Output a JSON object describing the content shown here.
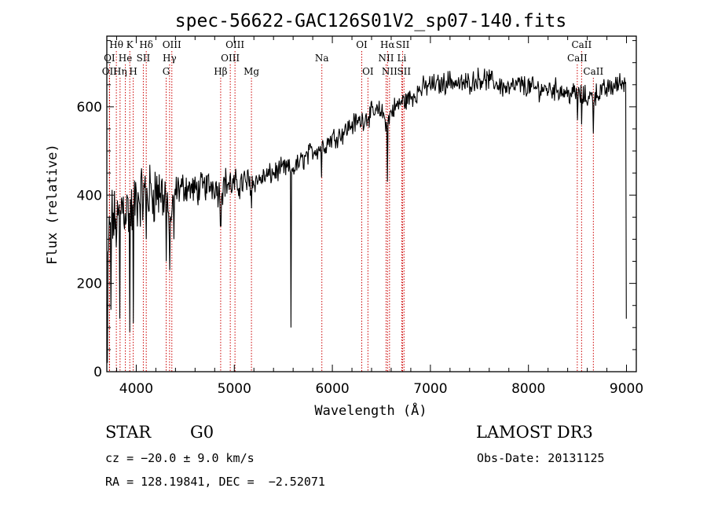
{
  "chart_data": {
    "type": "line",
    "title": "spec-56622-GAC126S01V2_sp07-140.fits",
    "xlabel": "Wavelength (Å)",
    "ylabel": "Flux (relative)",
    "xlim": [
      3700,
      9100
    ],
    "ylim": [
      0,
      760
    ],
    "xticks": [
      4000,
      5000,
      6000,
      7000,
      8000,
      9000
    ],
    "yticks": [
      0,
      200,
      400,
      600
    ],
    "series": [
      {
        "name": "flux",
        "anchors": [
          [
            3700,
            150
          ],
          [
            3720,
            300
          ],
          [
            3750,
            350
          ],
          [
            3800,
            330
          ],
          [
            3850,
            380
          ],
          [
            3900,
            370
          ],
          [
            3950,
            360
          ],
          [
            4000,
            390
          ],
          [
            4100,
            400
          ],
          [
            4200,
            410
          ],
          [
            4300,
            400
          ],
          [
            4340,
            330
          ],
          [
            4400,
            410
          ],
          [
            4500,
            420
          ],
          [
            4600,
            410
          ],
          [
            4700,
            420
          ],
          [
            4800,
            425
          ],
          [
            4861,
            400
          ],
          [
            4900,
            430
          ],
          [
            5000,
            420
          ],
          [
            5100,
            430
          ],
          [
            5200,
            430
          ],
          [
            5300,
            440
          ],
          [
            5400,
            450
          ],
          [
            5500,
            460
          ],
          [
            5600,
            460
          ],
          [
            5700,
            480
          ],
          [
            5800,
            500
          ],
          [
            5900,
            510
          ],
          [
            6000,
            530
          ],
          [
            6100,
            540
          ],
          [
            6200,
            560
          ],
          [
            6300,
            570
          ],
          [
            6400,
            585
          ],
          [
            6500,
            590
          ],
          [
            6563,
            560
          ],
          [
            6600,
            590
          ],
          [
            6700,
            610
          ],
          [
            6800,
            620
          ],
          [
            6900,
            640
          ],
          [
            7000,
            650
          ],
          [
            7100,
            650
          ],
          [
            7200,
            660
          ],
          [
            7300,
            650
          ],
          [
            7400,
            655
          ],
          [
            7500,
            665
          ],
          [
            7600,
            660
          ],
          [
            7700,
            650
          ],
          [
            7800,
            640
          ],
          [
            7900,
            650
          ],
          [
            8000,
            645
          ],
          [
            8100,
            640
          ],
          [
            8200,
            640
          ],
          [
            8300,
            640
          ],
          [
            8400,
            630
          ],
          [
            8500,
            630
          ],
          [
            8600,
            620
          ],
          [
            8700,
            630
          ],
          [
            8800,
            640
          ],
          [
            8900,
            650
          ],
          [
            9000,
            660
          ]
        ],
        "absorption": [
          [
            3705,
            20
          ],
          [
            3740,
            140
          ],
          [
            3830,
            120
          ],
          [
            3935,
            90
          ],
          [
            3969,
            110
          ],
          [
            4102,
            300
          ],
          [
            4305,
            250
          ],
          [
            4340,
            230
          ],
          [
            4383,
            300
          ],
          [
            4861,
            330
          ],
          [
            5175,
            370
          ],
          [
            5577,
            100
          ],
          [
            5890,
            440
          ],
          [
            6563,
            430
          ],
          [
            8498,
            570
          ],
          [
            8542,
            560
          ],
          [
            8662,
            540
          ],
          [
            9000,
            120
          ]
        ]
      }
    ],
    "lines": [
      {
        "label": "Hθ",
        "x": 3797,
        "row": 1
      },
      {
        "label": "K",
        "x": 3934,
        "row": 1
      },
      {
        "label": "Hδ",
        "x": 4102,
        "row": 1
      },
      {
        "label": "OIII",
        "x": 4363,
        "row": 1
      },
      {
        "label": "OIII",
        "x": 5007,
        "row": 1
      },
      {
        "label": "OI",
        "x": 6300,
        "row": 1
      },
      {
        "label": "Hα",
        "x": 6563,
        "row": 1
      },
      {
        "label": "SII",
        "x": 6717,
        "row": 1
      },
      {
        "label": "CaII",
        "x": 8542,
        "row": 1
      },
      {
        "label": "OI",
        "x": 3727,
        "row": 2
      },
      {
        "label": "He",
        "x": 3889,
        "row": 2
      },
      {
        "label": "SII",
        "x": 4072,
        "row": 2
      },
      {
        "label": "Hγ",
        "x": 4340,
        "row": 2
      },
      {
        "label": "OIII",
        "x": 4959,
        "row": 2
      },
      {
        "label": "Na",
        "x": 5893,
        "row": 2
      },
      {
        "label": "NII",
        "x": 6548,
        "row": 2
      },
      {
        "label": "Li",
        "x": 6708,
        "row": 2
      },
      {
        "label": "CaII",
        "x": 8498,
        "row": 2
      },
      {
        "label": "OII",
        "x": 3727,
        "row": 3
      },
      {
        "label": "Hη",
        "x": 3835,
        "row": 3
      },
      {
        "label": "H",
        "x": 3969,
        "row": 3
      },
      {
        "label": "G",
        "x": 4305,
        "row": 3
      },
      {
        "label": "Hβ",
        "x": 4861,
        "row": 3
      },
      {
        "label": "Mg",
        "x": 5175,
        "row": 3
      },
      {
        "label": "OI",
        "x": 6363,
        "row": 3
      },
      {
        "label": "NII",
        "x": 6583,
        "row": 3
      },
      {
        "label": "SII",
        "x": 6731,
        "row": 3
      },
      {
        "label": "CaII",
        "x": 8662,
        "row": 3
      }
    ]
  },
  "info": {
    "class": "STAR",
    "subclass": "G0",
    "survey": "LAMOST DR3",
    "cz": "cz = −20.0 ± 9.0 km/s",
    "obsdate": "Obs-Date: 20131125",
    "radec": "RA = 128.19841, DEC =  −2.52071"
  },
  "colors": {
    "line_marker": "#cc0000",
    "spectrum": "#000000"
  }
}
